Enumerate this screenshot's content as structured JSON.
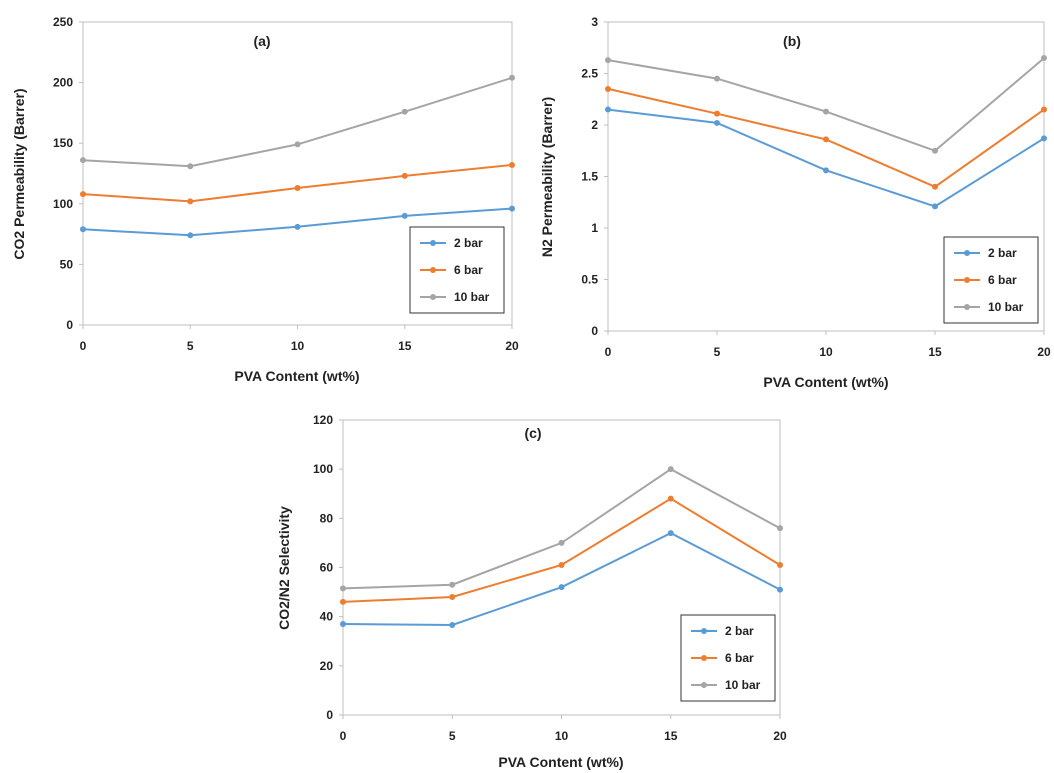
{
  "colors": {
    "2 bar": "#5B9BD5",
    "6 bar": "#ED7D31",
    "10 bar": "#A5A5A5"
  },
  "chart_data": [
    {
      "id": "a",
      "type": "line",
      "panel_label": "(a)",
      "xlabel": "PVA  Content (wt%)",
      "ylabel": "CO2 Permeability (Barrer)",
      "x": [
        0,
        5,
        10,
        15,
        20
      ],
      "xticks": [
        "0",
        "5",
        "10",
        "15",
        "20"
      ],
      "ylim": [
        0,
        250
      ],
      "yticks": [
        "0",
        "50",
        "100",
        "150",
        "200",
        "250"
      ],
      "grid": false,
      "legend_position": "right",
      "series": [
        {
          "name": "2 bar",
          "values": [
            79,
            74,
            81,
            90,
            96
          ]
        },
        {
          "name": "6 bar",
          "values": [
            108,
            102,
            113,
            123,
            132
          ]
        },
        {
          "name": "10 bar",
          "values": [
            136,
            131,
            149,
            176,
            204
          ]
        }
      ]
    },
    {
      "id": "b",
      "type": "line",
      "panel_label": "(b)",
      "xlabel": "PVA Content (wt%)",
      "ylabel": "N2 Permeability (Barrer)",
      "x": [
        0,
        5,
        10,
        15,
        20
      ],
      "xticks": [
        "0",
        "5",
        "10",
        "15",
        "20"
      ],
      "ylim": [
        0,
        3
      ],
      "yticks": [
        "0",
        "0.5",
        "1",
        "1.5",
        "2",
        "2.5",
        "3"
      ],
      "grid": false,
      "legend_position": "bottom-right",
      "series": [
        {
          "name": "2 bar",
          "values": [
            2.15,
            2.02,
            1.56,
            1.21,
            1.87
          ]
        },
        {
          "name": "6 bar",
          "values": [
            2.35,
            2.11,
            1.86,
            1.4,
            2.15
          ]
        },
        {
          "name": "10 bar",
          "values": [
            2.63,
            2.45,
            2.13,
            1.75,
            2.65
          ]
        }
      ]
    },
    {
      "id": "c",
      "type": "line",
      "panel_label": "(c)",
      "xlabel": "PVA Content (wt%)",
      "ylabel": "CO2/N2 Selectivity",
      "x": [
        0,
        5,
        10,
        15,
        20
      ],
      "xticks": [
        "0",
        "5",
        "10",
        "15",
        "20"
      ],
      "ylim": [
        0,
        120
      ],
      "yticks": [
        "0",
        "20",
        "40",
        "60",
        "80",
        "100",
        "120"
      ],
      "grid": false,
      "legend_position": "bottom-right",
      "series": [
        {
          "name": "2 bar",
          "values": [
            37,
            36.6,
            52,
            74,
            51
          ]
        },
        {
          "name": "6 bar",
          "values": [
            46,
            48,
            61,
            88,
            61
          ]
        },
        {
          "name": "10 bar",
          "values": [
            51.5,
            53,
            70,
            100,
            76
          ]
        }
      ]
    }
  ]
}
